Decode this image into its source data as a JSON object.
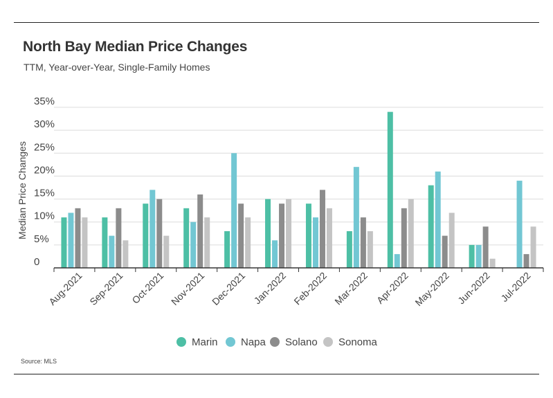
{
  "header": {
    "title": "North Bay Median Price Changes",
    "subtitle": "TTM, Year-over-Year, Single-Family Homes"
  },
  "footer": {
    "source": "Source:  MLS"
  },
  "chart_data": {
    "type": "bar",
    "title": "North Bay Median Price Changes",
    "subtitle": "TTM, Year-over-Year, Single-Family Homes",
    "xlabel": "",
    "ylabel": "Median Price Changes",
    "ylim": [
      0,
      35
    ],
    "yticks": [
      0,
      5,
      10,
      15,
      20,
      25,
      30,
      35
    ],
    "ytick_labels": [
      "0",
      "5%",
      "10%",
      "15%",
      "20%",
      "25%",
      "30%",
      "35%"
    ],
    "grid": true,
    "legend_position": "bottom",
    "categories": [
      "Aug-2021",
      "Sep-2021",
      "Oct-2021",
      "Nov-2021",
      "Dec-2021",
      "Jan-2022",
      "Feb-2022",
      "Mar-2022",
      "Apr-2022",
      "May-2022",
      "Jun-2022",
      "Jul-2022"
    ],
    "series": [
      {
        "name": "Marin",
        "color": "#4dbfa5",
        "values": [
          11,
          11,
          14,
          13,
          8,
          15,
          14,
          8,
          34,
          18,
          5,
          0
        ]
      },
      {
        "name": "Napa",
        "color": "#72c7d3",
        "values": [
          12,
          7,
          17,
          10,
          25,
          6,
          11,
          22,
          3,
          21,
          5,
          19
        ]
      },
      {
        "name": "Solano",
        "color": "#8c8c8c",
        "values": [
          13,
          13,
          15,
          16,
          14,
          14,
          17,
          11,
          13,
          7,
          9,
          3
        ]
      },
      {
        "name": "Sonoma",
        "color": "#c4c4c4",
        "values": [
          11,
          6,
          7,
          11,
          11,
          15,
          13,
          8,
          15,
          12,
          2,
          9
        ]
      }
    ],
    "source": "Source:  MLS"
  }
}
